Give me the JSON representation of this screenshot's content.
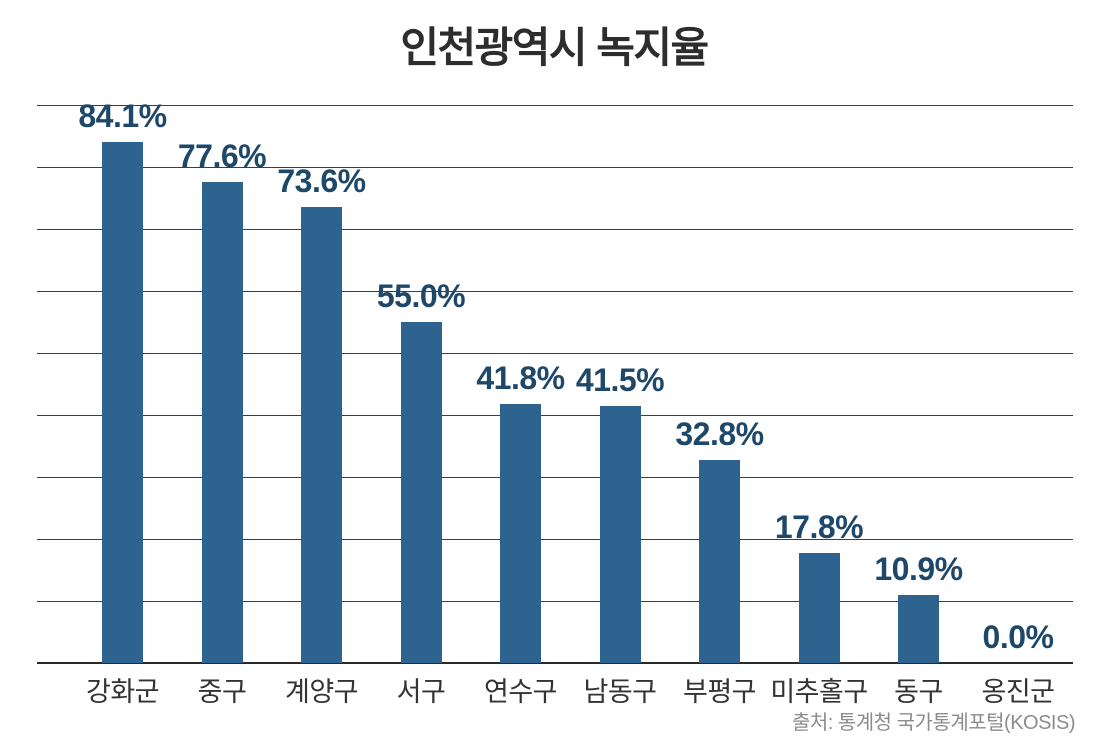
{
  "page": {
    "background_color": "#ffffff"
  },
  "chart_data": {
    "type": "bar",
    "title": "인천광역시 녹지율",
    "categories": [
      "강화군",
      "중구",
      "계양구",
      "서구",
      "연수구",
      "남동구",
      "부평구",
      "미추홀구",
      "동구",
      "옹진군"
    ],
    "values": [
      84.1,
      77.6,
      73.6,
      55.0,
      41.8,
      41.5,
      32.8,
      17.8,
      10.9,
      0.0
    ],
    "value_labels": [
      "84.1%",
      "77.6%",
      "73.6%",
      "55.0%",
      "41.8%",
      "41.5%",
      "32.8%",
      "17.8%",
      "10.9%",
      "0.0%"
    ],
    "xlabel": "",
    "ylabel": "",
    "ylim": [
      0,
      90
    ],
    "gridline_interval": 10,
    "grid": true,
    "y_tick_labels_visible": false,
    "legend": "none",
    "bar_color": "#2e628f",
    "value_label_color": "#1e4869",
    "category_label_color": "#333333",
    "title_color": "#2d2d2d",
    "grid_color": "#3d3d3d",
    "axis_color": "#2a2a2a",
    "source": "출처: 통계청 국가통계포털(KOSIS)"
  }
}
